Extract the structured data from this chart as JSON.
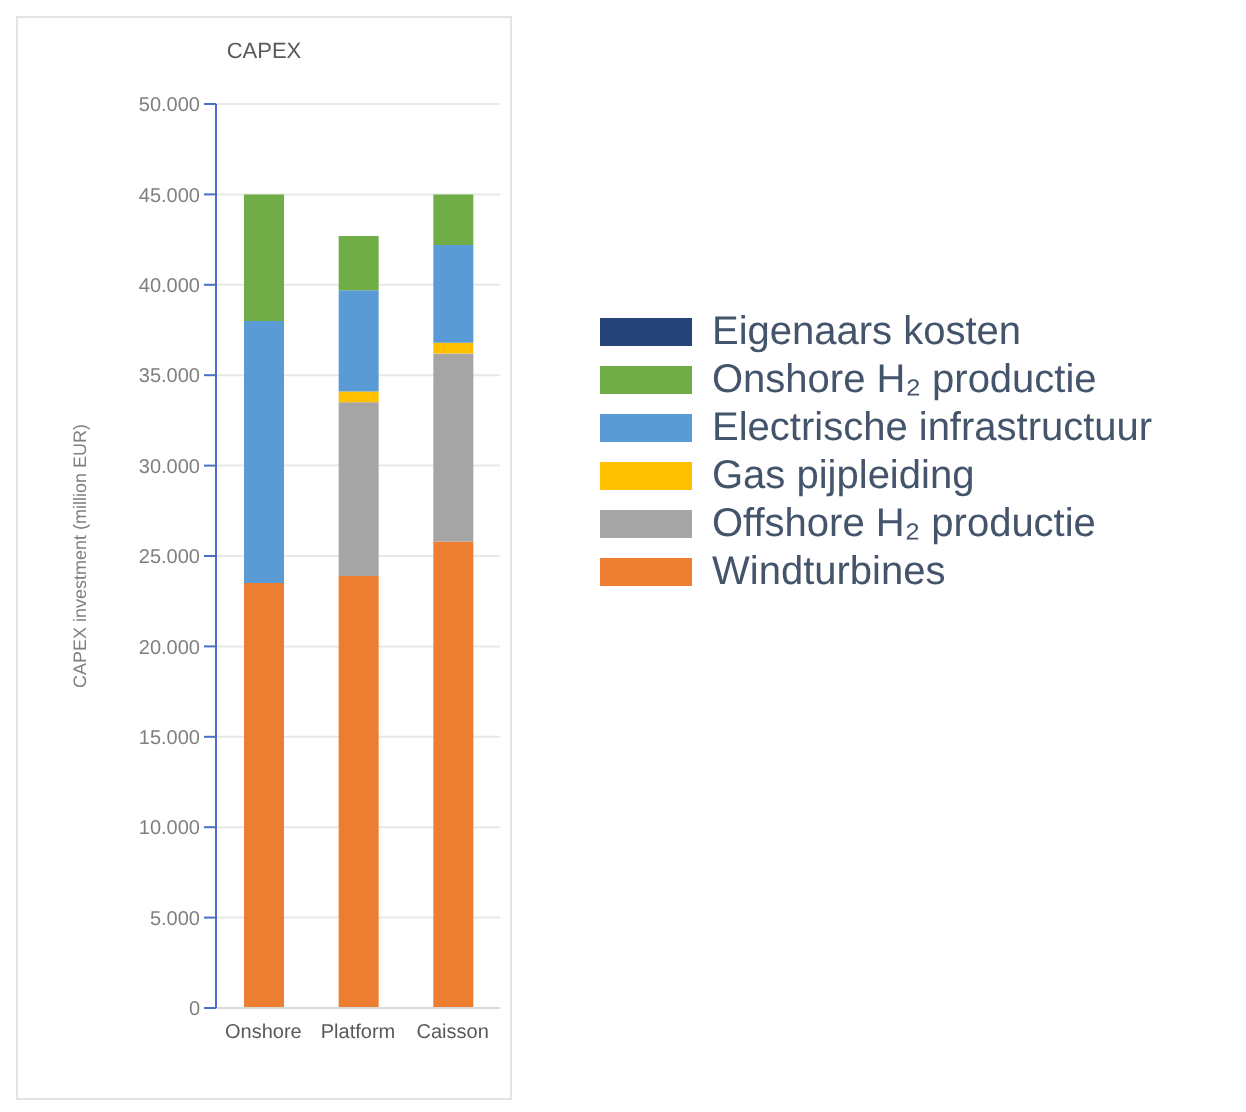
{
  "chart_data": {
    "type": "bar",
    "title": "CAPEX",
    "ylabel": "CAPEX investment (million EUR)",
    "categories": [
      "Onshore",
      "Platform",
      "Caisson"
    ],
    "stacked": true,
    "grid": "y",
    "legend": "right",
    "ylim": [
      0,
      50000
    ],
    "yticks": [
      {
        "value": 0,
        "label": "0"
      },
      {
        "value": 5000,
        "label": "5.000"
      },
      {
        "value": 10000,
        "label": "10.000"
      },
      {
        "value": 15000,
        "label": "15.000"
      },
      {
        "value": 20000,
        "label": "20.000"
      },
      {
        "value": 25000,
        "label": "25.000"
      },
      {
        "value": 30000,
        "label": "30.000"
      },
      {
        "value": 35000,
        "label": "35.000"
      },
      {
        "value": 40000,
        "label": "40.000"
      },
      {
        "value": 45000,
        "label": "45.000"
      },
      {
        "value": 50000,
        "label": "50.000"
      }
    ],
    "series": [
      {
        "name": "Windturbines",
        "color": "#ed7d31",
        "values": [
          23500,
          23900,
          25800
        ]
      },
      {
        "name": "Offshore H₂ productie",
        "color": "#a5a5a5",
        "values": [
          0,
          9600,
          10400
        ]
      },
      {
        "name": "Gas pijpleiding",
        "color": "#ffc000",
        "values": [
          0,
          600,
          600
        ]
      },
      {
        "name": "Electrische infrastructuur",
        "color": "#5b9bd5",
        "values": [
          14500,
          5600,
          5400
        ]
      },
      {
        "name": "Onshore H₂ productie",
        "color": "#70ad47",
        "values": [
          7000,
          3000,
          2800
        ]
      },
      {
        "name": "Eigenaars kosten",
        "color": "#264478",
        "values": [
          0,
          0,
          0
        ]
      }
    ]
  }
}
